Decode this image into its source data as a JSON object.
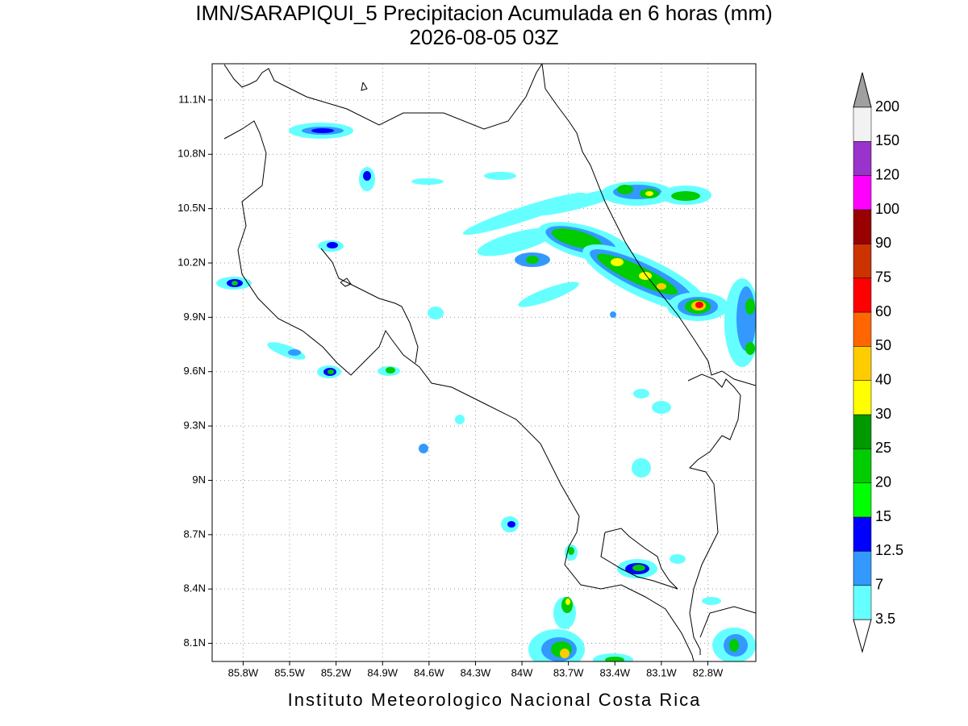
{
  "title": "IMN/SARAPIQUI_5 Precipitacion Acumulada en 6 horas (mm)",
  "subtitle": "2026-08-05 03Z",
  "footer": "Instituto Meteorologico Nacional Costa Rica",
  "map": {
    "lonlim": [
      -86.0,
      -82.49
    ],
    "latlim": [
      8.0,
      11.3
    ],
    "grid": true,
    "lonticks": [
      {
        "value": -85.8,
        "label": "85.8W"
      },
      {
        "value": -85.5,
        "label": "85.5W"
      },
      {
        "value": -85.2,
        "label": "85.2W"
      },
      {
        "value": -84.9,
        "label": "84.9W"
      },
      {
        "value": -84.6,
        "label": "84.6W"
      },
      {
        "value": -84.3,
        "label": "84.3W"
      },
      {
        "value": -84.0,
        "label": "84W"
      },
      {
        "value": -83.7,
        "label": "83.7W"
      },
      {
        "value": -83.4,
        "label": "83.4W"
      },
      {
        "value": -83.1,
        "label": "83.1W"
      },
      {
        "value": -82.8,
        "label": "82.8W"
      }
    ],
    "latticks": [
      {
        "value": 8.1,
        "label": "8.1N"
      },
      {
        "value": 8.4,
        "label": "8.4N"
      },
      {
        "value": 8.7,
        "label": "8.7N"
      },
      {
        "value": 9.0,
        "label": "9N"
      },
      {
        "value": 9.3,
        "label": "9.3N"
      },
      {
        "value": 9.6,
        "label": "9.6N"
      },
      {
        "value": 9.9,
        "label": "9.9N"
      },
      {
        "value": 10.2,
        "label": "10.2N"
      },
      {
        "value": 10.5,
        "label": "10.5N"
      },
      {
        "value": 10.8,
        "label": "10.8N"
      },
      {
        "value": 11.1,
        "label": "11.1N"
      }
    ]
  },
  "colorbar": {
    "levels": [
      3.5,
      7,
      12.5,
      15,
      20,
      25,
      30,
      40,
      50,
      60,
      75,
      90,
      100,
      120,
      150,
      200
    ],
    "colors": [
      "#66ffff",
      "#3399ff",
      "#0000ff",
      "#00ff00",
      "#00cc00",
      "#009900",
      "#ffff00",
      "#ffcc00",
      "#ff6600",
      "#ff0000",
      "#cc3300",
      "#990000",
      "#ff00ff",
      "#9933cc",
      "#f2f2f2"
    ],
    "under_color": "#ffffff",
    "over_color": "#a0a0a0"
  }
}
